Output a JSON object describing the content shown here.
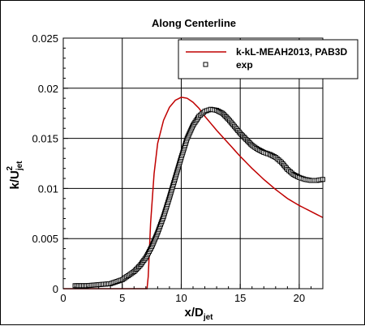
{
  "chart_data": {
    "type": "line",
    "title": "Along Centerline",
    "xlabel": {
      "main": "x/D",
      "sub": "jet"
    },
    "ylabel": {
      "main": "k/U",
      "sub": "jet",
      "sup": "2"
    },
    "xlim": [
      0,
      22
    ],
    "ylim": [
      0,
      0.025
    ],
    "xticks": [
      0,
      5,
      10,
      15,
      20
    ],
    "xtick_labels": [
      "0",
      "5",
      "10",
      "15",
      "20"
    ],
    "yticks": [
      0,
      0.005,
      0.01,
      0.015,
      0.02,
      0.025
    ],
    "ytick_labels": [
      "0",
      "0.005",
      "0.01",
      "0.015",
      "0.02",
      "0.025"
    ],
    "grid": true,
    "legend_position": "top-right",
    "series": [
      {
        "name": "k-kL-MEAH2013, PAB3D",
        "style": "line",
        "color": "#c00000",
        "x": [
          0,
          7.1,
          7.2,
          7.4,
          7.7,
          8.0,
          8.5,
          9.0,
          9.5,
          10.0,
          10.5,
          11.0,
          11.5,
          12.0,
          13.0,
          14.0,
          15.0,
          16.0,
          17.0,
          18.0,
          19.0,
          20.0,
          21.0,
          22.0
        ],
        "y": [
          0,
          0,
          0.0012,
          0.0065,
          0.0115,
          0.0145,
          0.0168,
          0.0181,
          0.0188,
          0.0191,
          0.019,
          0.0186,
          0.018,
          0.0172,
          0.0158,
          0.0145,
          0.0132,
          0.012,
          0.0109,
          0.0099,
          0.009,
          0.0083,
          0.0077,
          0.0071
        ]
      },
      {
        "name": "exp",
        "style": "markers",
        "marker": "square",
        "color": "#000000",
        "x": [
          1,
          2,
          3,
          4,
          5,
          6,
          6.5,
          7,
          7.5,
          8,
          8.5,
          9,
          9.5,
          10,
          10.5,
          11,
          11.5,
          12,
          12.5,
          13,
          13.5,
          14,
          14.5,
          15,
          15.5,
          16,
          16.5,
          17,
          17.5,
          18,
          18.5,
          19,
          19.5,
          20,
          20.5,
          21,
          21.5,
          22
        ],
        "y": [
          0.0003,
          0.0003,
          0.0004,
          0.0005,
          0.0009,
          0.0017,
          0.0023,
          0.0031,
          0.0042,
          0.0056,
          0.0072,
          0.0091,
          0.0111,
          0.0131,
          0.015,
          0.0163,
          0.0172,
          0.0177,
          0.0179,
          0.0178,
          0.0175,
          0.0169,
          0.0162,
          0.0155,
          0.0149,
          0.0143,
          0.0139,
          0.0136,
          0.0134,
          0.0131,
          0.0126,
          0.0119,
          0.0114,
          0.0111,
          0.0109,
          0.0108,
          0.0108,
          0.0109
        ]
      }
    ]
  }
}
